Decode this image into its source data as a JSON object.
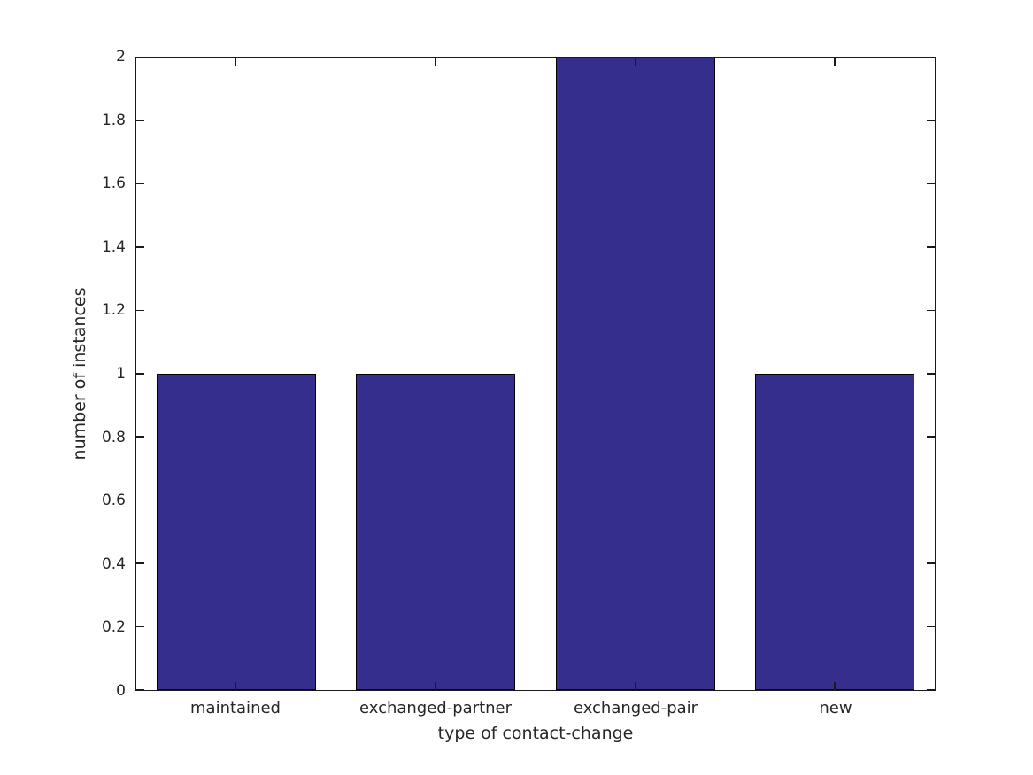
{
  "chart_data": {
    "type": "bar",
    "categories": [
      "maintained",
      "exchanged-partner",
      "exchanged-pair",
      "new"
    ],
    "values": [
      1,
      1,
      2,
      1
    ],
    "title": "",
    "xlabel": "type of contact-change",
    "ylabel": "number of instances",
    "ylim": [
      0,
      2
    ],
    "ytick_values": [
      0,
      0.2,
      0.4,
      0.6,
      0.8,
      1,
      1.2,
      1.4,
      1.6,
      1.8,
      2
    ],
    "ytick_labels": [
      "0",
      "0.2",
      "0.4",
      "0.6",
      "0.8",
      "1",
      "1.2",
      "1.4",
      "1.6",
      "1.8",
      "2"
    ],
    "bar_width_fraction": 0.8,
    "xlim": [
      -0.5,
      3.5
    ],
    "grid": false,
    "legend": null,
    "colors": {
      "bar_fill": "#352e8c",
      "bar_edge": "#000000",
      "axis_line": "#1a1a1a",
      "text": "#262626",
      "background": "#ffffff"
    }
  }
}
